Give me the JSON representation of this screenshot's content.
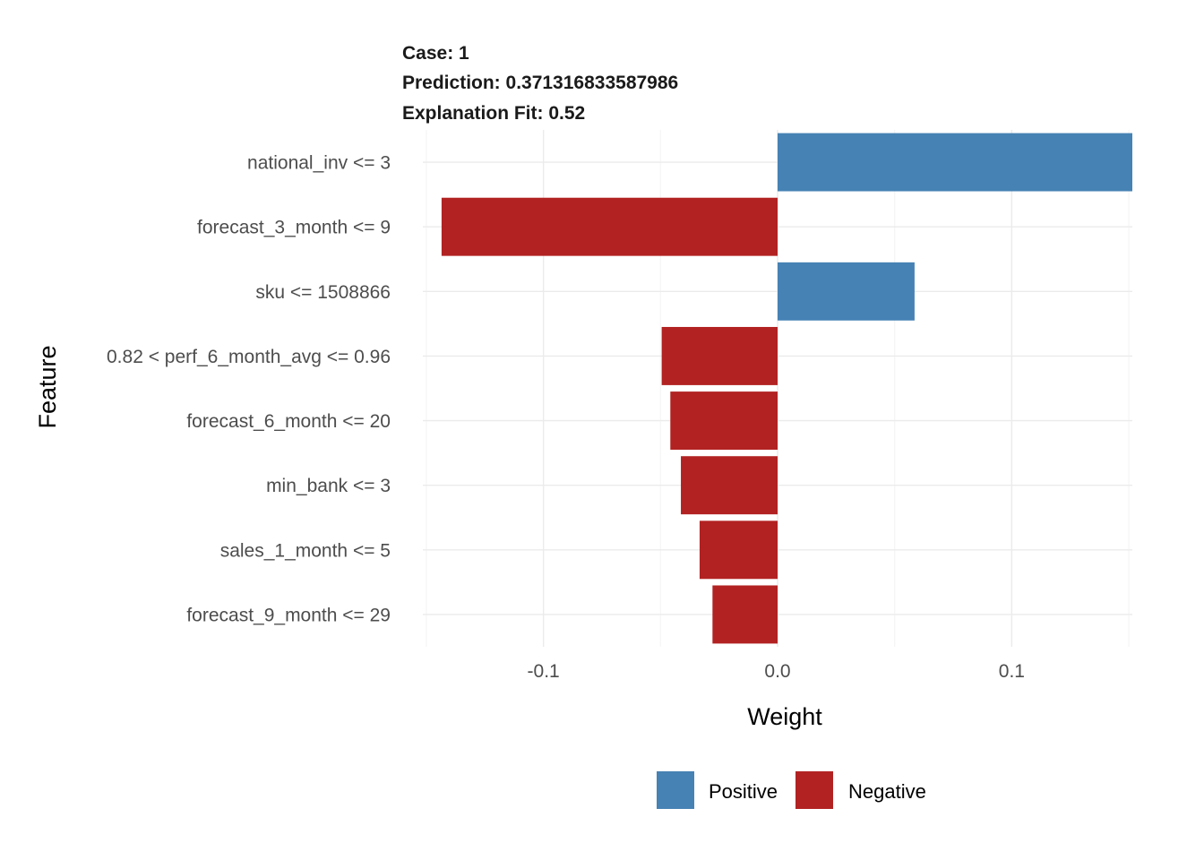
{
  "header": {
    "case_line": "Case: 1",
    "prediction_line": "Prediction: 0.371316833587986",
    "fit_line": "Explanation Fit: 0.52"
  },
  "axes": {
    "xlabel": "Weight",
    "ylabel": "Feature",
    "x_ticks": [
      {
        "value": -0.1,
        "label": "-0.1"
      },
      {
        "value": 0.0,
        "label": "0.0"
      },
      {
        "value": 0.1,
        "label": "0.1"
      }
    ]
  },
  "legend": {
    "position": "bottom",
    "items": [
      {
        "label": "Positive",
        "color": "#4682B4"
      },
      {
        "label": "Negative",
        "color": "#B22222"
      }
    ]
  },
  "chart_data": {
    "type": "bar",
    "orientation": "horizontal",
    "categories": [
      "national_inv <= 3",
      "forecast_3_month <= 9",
      "sku <= 1508866",
      "0.82 < perf_6_month_avg <= 0.96",
      "forecast_6_month <= 20",
      "min_bank <= 3",
      "sales_1_month <= 5",
      "forecast_9_month <= 29"
    ],
    "values": [
      0.1515,
      -0.1435,
      0.0585,
      -0.0495,
      -0.0458,
      -0.0413,
      -0.0333,
      -0.0278
    ],
    "xlim": [
      -0.1515,
      0.1515
    ],
    "grid": true,
    "colors": {
      "positive": "#4682B4",
      "negative": "#B22222"
    }
  }
}
